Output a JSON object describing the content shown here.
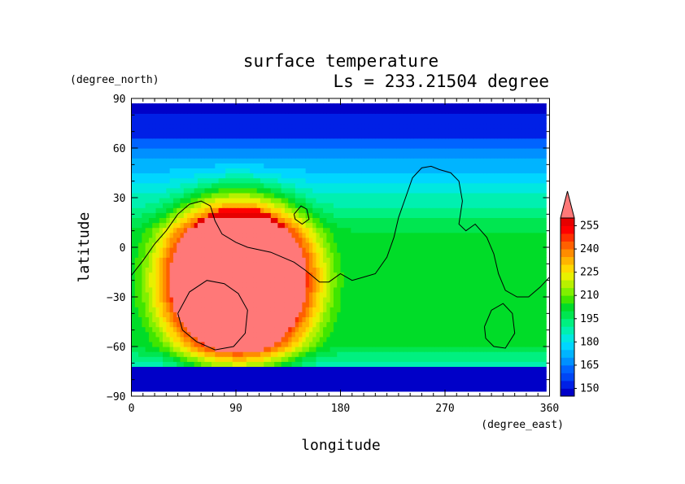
{
  "chart_data": {
    "type": "heatmap",
    "title": "surface temperature",
    "subtitle": "Ls = 233.21504 degree",
    "xlabel": "longitude",
    "ylabel": "latitude",
    "x_units": "(degree_east)",
    "y_units": "(degree_north)",
    "xlim": [
      0,
      360
    ],
    "ylim": [
      -90,
      90
    ],
    "x_ticks": [
      "0",
      "90",
      "180",
      "270",
      "360"
    ],
    "y_ticks": [
      "90",
      "60",
      "30",
      "0",
      "−30",
      "−60",
      "−90"
    ],
    "x_tick_values": [
      0,
      90,
      180,
      270,
      360
    ],
    "y_tick_values": [
      90,
      60,
      30,
      0,
      -30,
      -60,
      -90
    ],
    "data_extent": {
      "lon": [
        0,
        357
      ],
      "lat": [
        -87,
        87
      ]
    },
    "colorbar": {
      "labels": [
        "255",
        "240",
        "225",
        "210",
        "195",
        "180",
        "165",
        "150"
      ],
      "label_values": [
        255,
        240,
        225,
        210,
        195,
        180,
        165,
        150
      ],
      "levels": [
        145,
        150,
        155,
        160,
        165,
        170,
        175,
        180,
        185,
        190,
        195,
        200,
        205,
        210,
        215,
        220,
        225,
        230,
        235,
        240,
        245,
        250,
        255,
        260
      ],
      "colors": [
        "#0000c8",
        "#0020e6",
        "#0046f5",
        "#0064ff",
        "#0090ff",
        "#00b4ff",
        "#00d6ff",
        "#00e8e0",
        "#00f0b0",
        "#00f080",
        "#00e650",
        "#00dc28",
        "#40e600",
        "#80f000",
        "#b8f000",
        "#e8f000",
        "#ffd800",
        "#ffb400",
        "#ff8c00",
        "#ff6000",
        "#ff3000",
        "#ff0000",
        "#e60000",
        "#ff7878"
      ],
      "overflow_color": "#ff7878"
    },
    "field_model": {
      "southern_cap_lat": -72,
      "northern_cold_lat": 60,
      "warm_region": {
        "lon_center": 92,
        "lat_center": -20,
        "lon_radius": 80,
        "lat_radius": 60,
        "peak": 270
      },
      "background": 200
    },
    "coastlines": [
      [
        [
          0,
          -17
        ],
        [
          10,
          -8
        ],
        [
          20,
          2
        ],
        [
          30,
          10
        ],
        [
          40,
          20
        ],
        [
          50,
          26
        ],
        [
          60,
          28
        ],
        [
          68,
          25
        ],
        [
          72,
          16
        ],
        [
          78,
          8
        ],
        [
          90,
          3
        ],
        [
          100,
          0
        ],
        [
          120,
          -3
        ],
        [
          140,
          -9
        ],
        [
          150,
          -14
        ],
        [
          162,
          -21
        ],
        [
          170,
          -21
        ],
        [
          180,
          -16
        ],
        [
          190,
          -20
        ],
        [
          200,
          -18
        ],
        [
          210,
          -16
        ],
        [
          220,
          -6
        ],
        [
          226,
          6
        ],
        [
          230,
          18
        ],
        [
          236,
          30
        ],
        [
          242,
          42
        ],
        [
          250,
          48
        ],
        [
          258,
          49
        ],
        [
          265,
          47
        ],
        [
          275,
          45
        ],
        [
          282,
          40
        ],
        [
          285,
          28
        ],
        [
          282,
          14
        ],
        [
          288,
          10
        ],
        [
          296,
          14
        ],
        [
          306,
          6
        ],
        [
          312,
          -4
        ],
        [
          316,
          -16
        ],
        [
          322,
          -26
        ],
        [
          332,
          -30
        ],
        [
          342,
          -30
        ],
        [
          352,
          -24
        ],
        [
          360,
          -18
        ]
      ],
      [
        [
          140,
          20
        ],
        [
          146,
          25
        ],
        [
          151,
          23
        ],
        [
          153,
          17
        ],
        [
          147,
          14
        ],
        [
          141,
          17
        ],
        [
          140,
          20
        ]
      ],
      [
        [
          40,
          -40
        ],
        [
          50,
          -27
        ],
        [
          65,
          -20
        ],
        [
          80,
          -22
        ],
        [
          92,
          -28
        ],
        [
          100,
          -38
        ],
        [
          98,
          -52
        ],
        [
          88,
          -60
        ],
        [
          72,
          -62
        ],
        [
          56,
          -57
        ],
        [
          44,
          -50
        ],
        [
          40,
          -40
        ]
      ],
      [
        [
          304,
          -48
        ],
        [
          310,
          -38
        ],
        [
          320,
          -34
        ],
        [
          328,
          -40
        ],
        [
          330,
          -52
        ],
        [
          322,
          -61
        ],
        [
          312,
          -60
        ],
        [
          305,
          -55
        ],
        [
          304,
          -48
        ]
      ]
    ]
  }
}
